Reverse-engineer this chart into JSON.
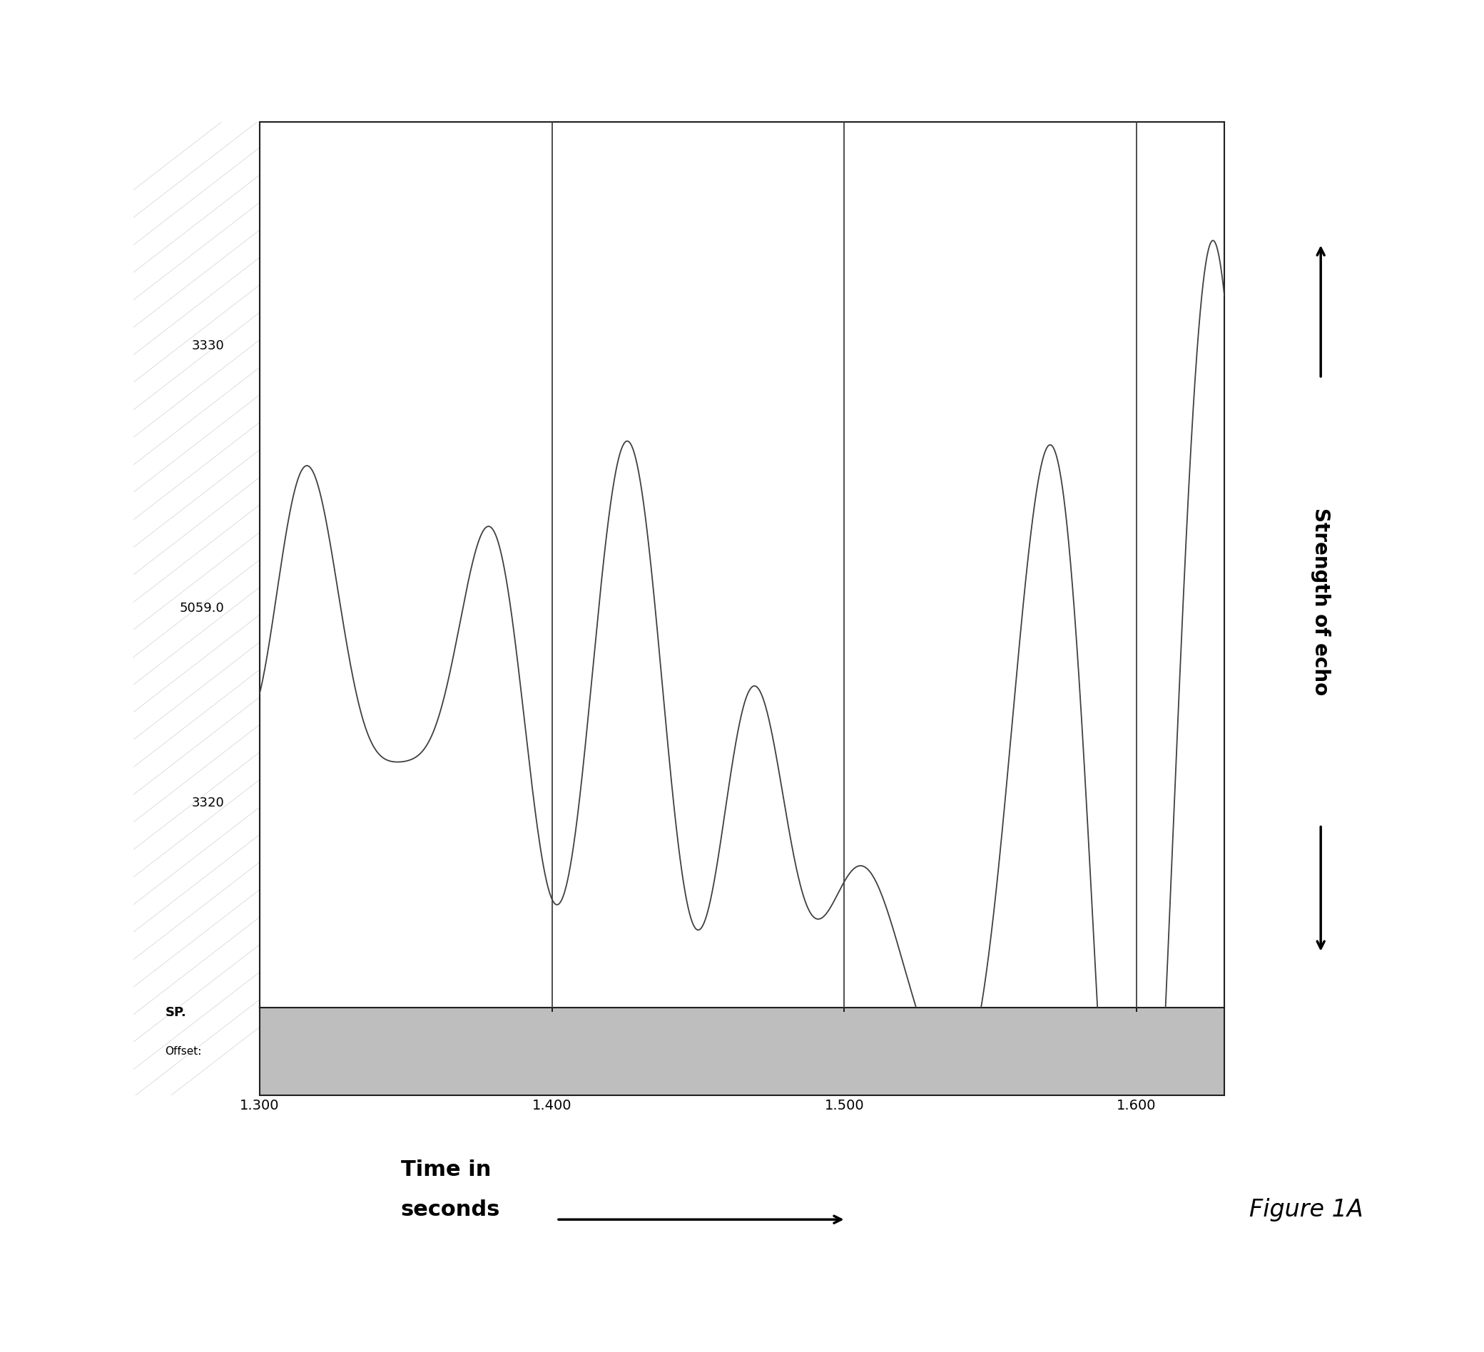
{
  "title": "",
  "xlabel": "Time in seconds",
  "ylabel": "Strength of echo",
  "xlim": [
    1.3,
    1.63
  ],
  "ylim_data": [
    -1.0,
    0.8
  ],
  "x_ticks": [
    1.3,
    1.4,
    1.5,
    1.6
  ],
  "x_tick_labels": [
    "1.300",
    "1.400",
    "1.500",
    "1.600"
  ],
  "vlines": [
    1.4,
    1.5,
    1.6
  ],
  "left_panel_color": "#bebebe",
  "plot_bg_color": "#ffffff",
  "outer_bg_color": "#c8c8c8",
  "bottom_strip_color": "#bebebe",
  "line_color": "#404040",
  "sp_label": "SP.",
  "offset_label": "Offset:",
  "y_label_left1": "3330",
  "y_label_left2": "5059.0",
  "y_label_left3": "3320",
  "figure_label": "Figure 1A"
}
